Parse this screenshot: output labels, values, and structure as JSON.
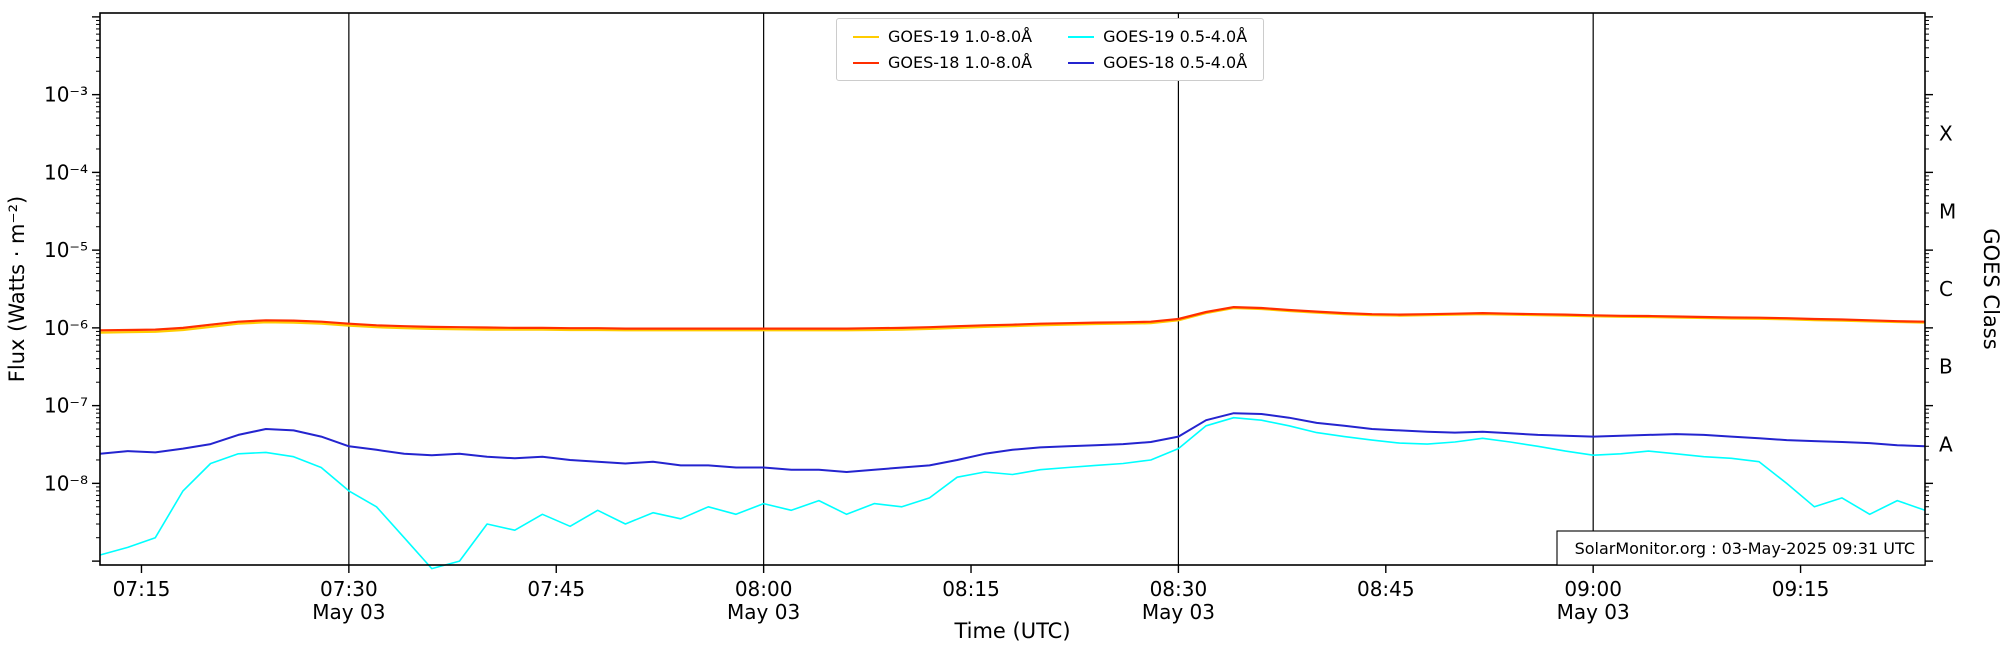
{
  "chart_data": {
    "type": "line",
    "title": "",
    "xlabel": "Time (UTC)",
    "ylabel_left": "Flux (Watts · m⁻²)",
    "ylabel_right": "GOES Class",
    "background": "#ffffff",
    "watermark": "SolarMonitor.org : 03-May-2025 09:31 UTC",
    "x_axis": {
      "start_time": "07:12",
      "end_time": "09:24",
      "range_minutes": [
        0,
        132
      ],
      "ticks": [
        {
          "min": 3,
          "label": "07:15"
        },
        {
          "min": 18,
          "label": "07:30",
          "date": "May 03"
        },
        {
          "min": 33,
          "label": "07:45"
        },
        {
          "min": 48,
          "label": "08:00",
          "date": "May 03"
        },
        {
          "min": 63,
          "label": "08:15"
        },
        {
          "min": 78,
          "label": "08:30",
          "date": "May 03"
        },
        {
          "min": 93,
          "label": "08:45"
        },
        {
          "min": 108,
          "label": "09:00",
          "date": "May 03"
        },
        {
          "min": 123,
          "label": "09:15"
        }
      ],
      "date_line_minutes": [
        18,
        48,
        78,
        108
      ]
    },
    "y_axis": {
      "scale": "log",
      "log_range": [
        -9.05,
        -1.95
      ],
      "tick_exponents": [
        -3,
        -4,
        -5,
        -6,
        -7,
        -8
      ],
      "tick_labels": [
        "10⁻³",
        "10⁻⁴",
        "10⁻⁵",
        "10⁻⁶",
        "10⁻⁷",
        "10⁻⁸"
      ],
      "right_class_labels": [
        {
          "label": "X",
          "log_center": -3.5
        },
        {
          "label": "M",
          "log_center": -4.5
        },
        {
          "label": "C",
          "log_center": -5.5
        },
        {
          "label": "B",
          "log_center": -6.5
        },
        {
          "label": "A",
          "log_center": -7.5
        }
      ]
    },
    "series": [
      {
        "name": "GOES-19 1.0-8.0Å",
        "color": "#ffcc00",
        "stroke_width": 2.2,
        "x_start_min": 0,
        "x_step_min": 2,
        "values": [
          8.7e-07,
          8.8e-07,
          8.9e-07,
          9.4e-07,
          1.03e-06,
          1.13e-06,
          1.18e-06,
          1.17e-06,
          1.13e-06,
          1.07e-06,
          1.02e-06,
          9.9e-07,
          9.7e-07,
          9.6e-07,
          9.5e-07,
          9.5e-07,
          9.5e-07,
          9.4e-07,
          9.4e-07,
          9.3e-07,
          9.3e-07,
          9.3e-07,
          9.3e-07,
          9.3e-07,
          9.3e-07,
          9.3e-07,
          9.3e-07,
          9.3e-07,
          9.4e-07,
          9.5e-07,
          9.7e-07,
          1e-06,
          1.03e-06,
          1.05e-06,
          1.08e-06,
          1.1e-06,
          1.12e-06,
          1.13e-06,
          1.15e-06,
          1.25e-06,
          1.55e-06,
          1.8e-06,
          1.75e-06,
          1.65e-06,
          1.57e-06,
          1.5e-06,
          1.46e-06,
          1.44e-06,
          1.46e-06,
          1.48e-06,
          1.5e-06,
          1.48e-06,
          1.46e-06,
          1.44e-06,
          1.41e-06,
          1.39e-06,
          1.38e-06,
          1.36e-06,
          1.34e-06,
          1.32e-06,
          1.31e-06,
          1.29e-06,
          1.26e-06,
          1.24e-06,
          1.21e-06,
          1.19e-06,
          1.17e-06
        ]
      },
      {
        "name": "GOES-18 1.0-8.0Å",
        "color": "#ff2e00",
        "stroke_width": 2.2,
        "x_start_min": 0,
        "x_step_min": 2,
        "values": [
          9.3e-07,
          9.4e-07,
          9.5e-07,
          1e-06,
          1.1e-06,
          1.2e-06,
          1.25e-06,
          1.24e-06,
          1.2e-06,
          1.13e-06,
          1.08e-06,
          1.05e-06,
          1.03e-06,
          1.02e-06,
          1.01e-06,
          1e-06,
          1e-06,
          9.9e-07,
          9.9e-07,
          9.8e-07,
          9.8e-07,
          9.8e-07,
          9.8e-07,
          9.8e-07,
          9.8e-07,
          9.8e-07,
          9.8e-07,
          9.8e-07,
          9.9e-07,
          1e-06,
          1.02e-06,
          1.05e-06,
          1.08e-06,
          1.1e-06,
          1.13e-06,
          1.15e-06,
          1.17e-06,
          1.18e-06,
          1.2e-06,
          1.3e-06,
          1.6e-06,
          1.85e-06,
          1.8e-06,
          1.7e-06,
          1.62e-06,
          1.55e-06,
          1.5e-06,
          1.48e-06,
          1.5e-06,
          1.52e-06,
          1.55e-06,
          1.52e-06,
          1.5e-06,
          1.48e-06,
          1.45e-06,
          1.43e-06,
          1.42e-06,
          1.4e-06,
          1.38e-06,
          1.36e-06,
          1.35e-06,
          1.33e-06,
          1.3e-06,
          1.28e-06,
          1.25e-06,
          1.22e-06,
          1.2e-06
        ]
      },
      {
        "name": "GOES-19 0.5-4.0Å",
        "color": "#00ffff",
        "stroke_width": 1.6,
        "x_start_min": 0,
        "x_step_min": 2,
        "values": [
          1.2e-09,
          1.5e-09,
          2e-09,
          8e-09,
          1.8e-08,
          2.4e-08,
          2.5e-08,
          2.2e-08,
          1.6e-08,
          8e-09,
          5e-09,
          2e-09,
          8e-10,
          1e-09,
          3e-09,
          2.5e-09,
          4e-09,
          2.8e-09,
          4.5e-09,
          3e-09,
          4.2e-09,
          3.5e-09,
          5e-09,
          4e-09,
          5.5e-09,
          4.5e-09,
          6e-09,
          4e-09,
          5.5e-09,
          5e-09,
          6.5e-09,
          1.2e-08,
          1.4e-08,
          1.3e-08,
          1.5e-08,
          1.6e-08,
          1.7e-08,
          1.8e-08,
          2e-08,
          2.8e-08,
          5.5e-08,
          7e-08,
          6.5e-08,
          5.5e-08,
          4.5e-08,
          4e-08,
          3.6e-08,
          3.3e-08,
          3.2e-08,
          3.4e-08,
          3.8e-08,
          3.4e-08,
          3e-08,
          2.6e-08,
          2.3e-08,
          2.4e-08,
          2.6e-08,
          2.4e-08,
          2.2e-08,
          2.1e-08,
          1.9e-08,
          1e-08,
          5e-09,
          6.5e-09,
          4e-09,
          6e-09,
          4.5e-09
        ]
      },
      {
        "name": "GOES-18 0.5-4.0Å",
        "color": "#2424cf",
        "stroke_width": 2.0,
        "x_start_min": 0,
        "x_step_min": 2,
        "values": [
          2.4e-08,
          2.6e-08,
          2.5e-08,
          2.8e-08,
          3.2e-08,
          4.2e-08,
          5e-08,
          4.8e-08,
          4e-08,
          3e-08,
          2.7e-08,
          2.4e-08,
          2.3e-08,
          2.4e-08,
          2.2e-08,
          2.1e-08,
          2.2e-08,
          2e-08,
          1.9e-08,
          1.8e-08,
          1.9e-08,
          1.7e-08,
          1.7e-08,
          1.6e-08,
          1.6e-08,
          1.5e-08,
          1.5e-08,
          1.4e-08,
          1.5e-08,
          1.6e-08,
          1.7e-08,
          2e-08,
          2.4e-08,
          2.7e-08,
          2.9e-08,
          3e-08,
          3.1e-08,
          3.2e-08,
          3.4e-08,
          4e-08,
          6.5e-08,
          8e-08,
          7.8e-08,
          7e-08,
          6e-08,
          5.5e-08,
          5e-08,
          4.8e-08,
          4.6e-08,
          4.5e-08,
          4.6e-08,
          4.4e-08,
          4.2e-08,
          4.1e-08,
          4e-08,
          4.1e-08,
          4.2e-08,
          4.3e-08,
          4.2e-08,
          4e-08,
          3.8e-08,
          3.6e-08,
          3.5e-08,
          3.4e-08,
          3.3e-08,
          3.1e-08,
          3e-08
        ]
      }
    ]
  }
}
